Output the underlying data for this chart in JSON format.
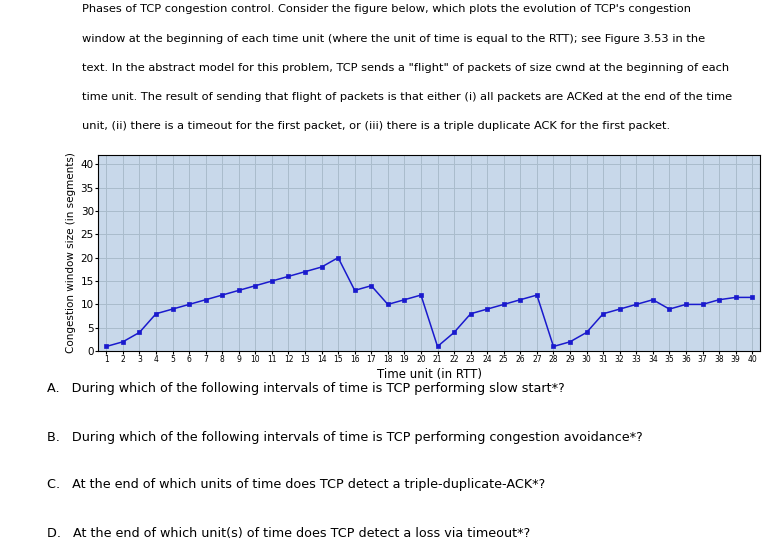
{
  "time_units": [
    1,
    2,
    3,
    4,
    5,
    6,
    7,
    8,
    9,
    10,
    11,
    12,
    13,
    14,
    15,
    16,
    17,
    18,
    19,
    20,
    21,
    22,
    23,
    24,
    25,
    26,
    27,
    28,
    29,
    30,
    31,
    32,
    33,
    34,
    35,
    36,
    37,
    38,
    39,
    40
  ],
  "cwnd": [
    1,
    2,
    4,
    8,
    9,
    10,
    11,
    12,
    13,
    14,
    15,
    16,
    17,
    18,
    20,
    13,
    14,
    10,
    11,
    12,
    1,
    4,
    8,
    9,
    10,
    11,
    12,
    1,
    2,
    4,
    8,
    9,
    10,
    11,
    9,
    10,
    10,
    11,
    11.5,
    11.5
  ],
  "line_color": "#1a1acd",
  "marker_color": "#1a1acd",
  "bg_color": "#c8d8ea",
  "grid_color": "#aabccc",
  "ylabel": "Congestion window size (in segments)",
  "xlabel": "Time unit (in RTT)",
  "ylim": [
    0,
    42
  ],
  "xlim": [
    0.5,
    40.5
  ],
  "yticks": [
    0,
    5,
    10,
    15,
    20,
    25,
    30,
    35,
    40
  ],
  "title_lines": [
    "Phases of TCP congestion control. Consider the figure below, which plots the evolution of TCP's congestion",
    "window at the beginning of each time unit (where the unit of time is equal to the RTT); see Figure 3.53 in the",
    "text. In the abstract model for this problem, TCP sends a \"flight\" of packets of size cwnd at the beginning of each",
    "time unit. The result of sending that flight of packets is that either (i) all packets are ACKed at the end of the time",
    "unit, (ii) there is a timeout for the first packet, or (iii) there is a triple duplicate ACK for the first packet."
  ],
  "cwnd_underline": "cwnd",
  "questions": [
    "A.   During which of the following intervals of time is TCP performing slow start*?",
    "B.   During which of the following intervals of time is TCP performing congestion avoidance*?",
    "C.   At the end of which units of time does TCP detect a triple-duplicate-ACK*?",
    "D.   At the end of which unit(s) of time does TCP detect a loss via timeout*?"
  ]
}
